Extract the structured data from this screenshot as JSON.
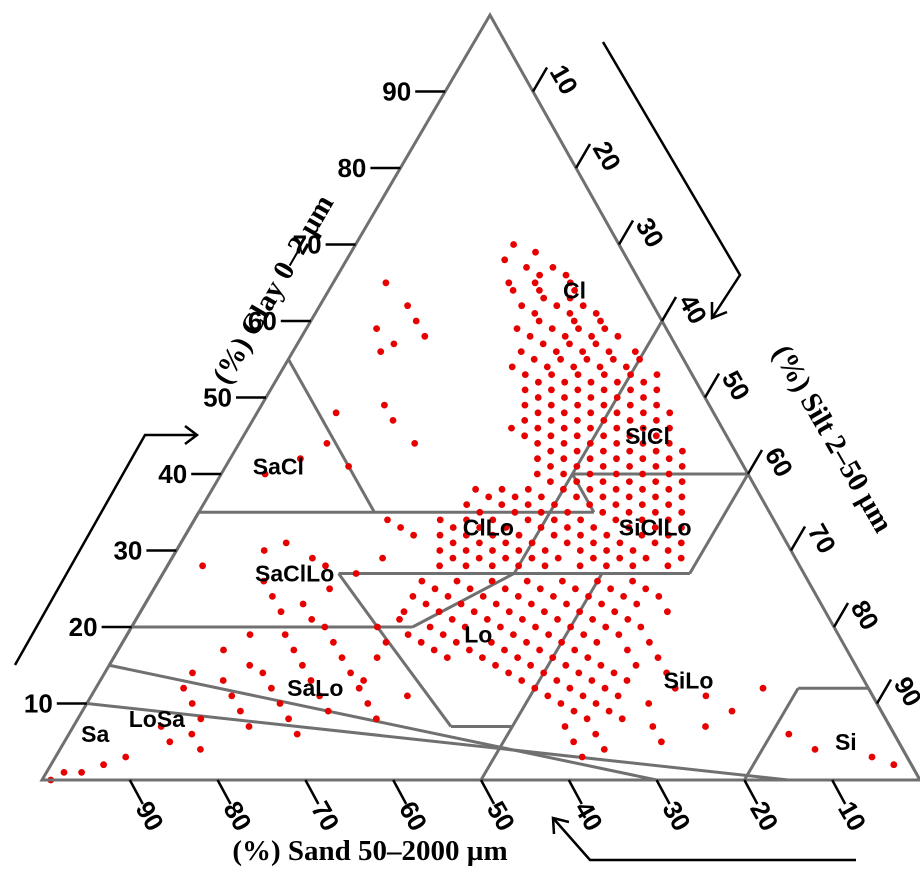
{
  "chart_data": {
    "type": "ternary-scatter",
    "axes": {
      "clay": {
        "title": "(%) Clay 0–2 µm",
        "ticks": [
          "10",
          "20",
          "30",
          "40",
          "50",
          "60",
          "70",
          "80",
          "90"
        ]
      },
      "silt": {
        "title": "(%) Silt 2–50 µm",
        "ticks": [
          "10",
          "20",
          "30",
          "40",
          "50",
          "60",
          "70",
          "80",
          "90"
        ]
      },
      "sand": {
        "title": "(%) Sand 50–2000 µm",
        "ticks": [
          "90",
          "80",
          "70",
          "60",
          "50",
          "40",
          "30",
          "20",
          "10"
        ]
      }
    },
    "regions": [
      {
        "label": "Cl",
        "clay": 64,
        "silt": 28
      },
      {
        "label": "SiCl",
        "clay": 45,
        "silt": 46
      },
      {
        "label": "SaCl",
        "clay": 41,
        "silt": 6
      },
      {
        "label": "ClLo",
        "clay": 33,
        "silt": 34
      },
      {
        "label": "SiClLo",
        "clay": 33,
        "silt": 53
      },
      {
        "label": "SaClLo",
        "clay": 27,
        "silt": 15
      },
      {
        "label": "Lo",
        "clay": 19,
        "silt": 40
      },
      {
        "label": "SiLo",
        "clay": 13,
        "silt": 67
      },
      {
        "label": "SaLo",
        "clay": 12,
        "silt": 25
      },
      {
        "label": "LoSa",
        "clay": 8,
        "silt": 9
      },
      {
        "label": "Sa",
        "clay": 6,
        "silt": 3
      },
      {
        "label": "Si",
        "clay": 5,
        "silt": 89
      }
    ],
    "point_color": "#e60000",
    "points": [
      [
        70,
        18
      ],
      [
        69,
        21
      ],
      [
        68,
        18
      ],
      [
        67,
        21
      ],
      [
        67,
        24
      ],
      [
        66,
        23
      ],
      [
        66,
        26
      ],
      [
        65,
        20
      ],
      [
        65,
        23
      ],
      [
        65,
        27
      ],
      [
        64,
        21
      ],
      [
        64,
        24
      ],
      [
        64,
        28
      ],
      [
        63,
        25
      ],
      [
        63,
        28
      ],
      [
        62,
        23
      ],
      [
        62,
        27
      ],
      [
        62,
        30
      ],
      [
        61,
        25
      ],
      [
        61,
        29
      ],
      [
        61,
        32
      ],
      [
        60,
        26
      ],
      [
        60,
        30
      ],
      [
        60,
        33
      ],
      [
        59,
        24
      ],
      [
        59,
        28
      ],
      [
        59,
        31
      ],
      [
        59,
        34
      ],
      [
        58,
        26
      ],
      [
        58,
        30
      ],
      [
        58,
        33
      ],
      [
        58,
        36
      ],
      [
        57,
        28
      ],
      [
        57,
        31
      ],
      [
        57,
        34
      ],
      [
        56,
        26
      ],
      [
        56,
        30
      ],
      [
        56,
        33
      ],
      [
        56,
        36
      ],
      [
        56,
        39
      ],
      [
        55,
        28
      ],
      [
        55,
        31
      ],
      [
        55,
        34
      ],
      [
        55,
        37
      ],
      [
        55,
        40
      ],
      [
        54,
        26
      ],
      [
        54,
        30
      ],
      [
        54,
        33
      ],
      [
        54,
        36
      ],
      [
        54,
        39
      ],
      [
        53,
        28
      ],
      [
        53,
        31
      ],
      [
        53,
        34
      ],
      [
        53,
        37
      ],
      [
        53,
        40
      ],
      [
        53,
        43
      ],
      [
        52,
        30
      ],
      [
        52,
        33
      ],
      [
        52,
        36
      ],
      [
        52,
        39
      ],
      [
        52,
        42
      ],
      [
        51,
        29
      ],
      [
        51,
        32
      ],
      [
        51,
        35
      ],
      [
        51,
        38
      ],
      [
        51,
        41
      ],
      [
        51,
        44
      ],
      [
        50,
        31
      ],
      [
        50,
        34
      ],
      [
        50,
        37
      ],
      [
        50,
        40
      ],
      [
        50,
        43
      ],
      [
        49,
        30
      ],
      [
        49,
        33
      ],
      [
        49,
        36
      ],
      [
        49,
        39
      ],
      [
        49,
        42
      ],
      [
        49,
        45
      ],
      [
        48,
        32
      ],
      [
        48,
        35
      ],
      [
        48,
        38
      ],
      [
        48,
        41
      ],
      [
        48,
        44
      ],
      [
        48,
        47
      ],
      [
        47,
        31
      ],
      [
        47,
        34
      ],
      [
        47,
        37
      ],
      [
        47,
        40
      ],
      [
        47,
        43
      ],
      [
        47,
        46
      ],
      [
        46,
        30
      ],
      [
        46,
        33
      ],
      [
        46,
        36
      ],
      [
        46,
        39
      ],
      [
        46,
        42
      ],
      [
        46,
        45
      ],
      [
        46,
        48
      ],
      [
        45,
        32
      ],
      [
        45,
        35
      ],
      [
        45,
        38
      ],
      [
        45,
        41
      ],
      [
        45,
        44
      ],
      [
        45,
        47
      ],
      [
        44,
        34
      ],
      [
        44,
        37
      ],
      [
        44,
        40
      ],
      [
        44,
        43
      ],
      [
        44,
        46
      ],
      [
        44,
        49
      ],
      [
        43,
        36
      ],
      [
        43,
        39
      ],
      [
        43,
        42
      ],
      [
        43,
        45
      ],
      [
        43,
        48
      ],
      [
        43,
        51
      ],
      [
        42,
        35
      ],
      [
        42,
        38
      ],
      [
        42,
        41
      ],
      [
        42,
        44
      ],
      [
        42,
        47
      ],
      [
        42,
        50
      ],
      [
        41,
        37
      ],
      [
        41,
        40
      ],
      [
        41,
        43
      ],
      [
        41,
        46
      ],
      [
        41,
        49
      ],
      [
        41,
        52
      ],
      [
        40,
        36
      ],
      [
        40,
        39
      ],
      [
        40,
        42
      ],
      [
        40,
        45
      ],
      [
        40,
        48
      ],
      [
        40,
        51
      ],
      [
        39,
        38
      ],
      [
        39,
        41
      ],
      [
        39,
        44
      ],
      [
        39,
        47
      ],
      [
        39,
        50
      ],
      [
        39,
        53
      ],
      [
        38,
        30
      ],
      [
        38,
        33
      ],
      [
        38,
        36
      ],
      [
        38,
        40
      ],
      [
        38,
        43
      ],
      [
        38,
        46
      ],
      [
        38,
        49
      ],
      [
        38,
        52
      ],
      [
        37,
        32
      ],
      [
        37,
        35
      ],
      [
        37,
        38
      ],
      [
        37,
        42
      ],
      [
        37,
        45
      ],
      [
        37,
        48
      ],
      [
        37,
        51
      ],
      [
        37,
        54
      ],
      [
        36,
        30
      ],
      [
        36,
        34
      ],
      [
        36,
        37
      ],
      [
        36,
        40
      ],
      [
        36,
        44
      ],
      [
        36,
        47
      ],
      [
        36,
        50
      ],
      [
        36,
        53
      ],
      [
        35,
        32
      ],
      [
        35,
        36
      ],
      [
        35,
        39
      ],
      [
        35,
        42
      ],
      [
        35,
        46
      ],
      [
        35,
        49
      ],
      [
        35,
        52
      ],
      [
        35,
        55
      ],
      [
        34,
        28
      ],
      [
        34,
        31
      ],
      [
        34,
        34
      ],
      [
        34,
        38
      ],
      [
        34,
        41
      ],
      [
        34,
        44
      ],
      [
        34,
        48
      ],
      [
        34,
        51
      ],
      [
        34,
        54
      ],
      [
        33,
        30
      ],
      [
        33,
        33
      ],
      [
        33,
        36
      ],
      [
        33,
        40
      ],
      [
        33,
        43
      ],
      [
        33,
        46
      ],
      [
        33,
        50
      ],
      [
        33,
        53
      ],
      [
        33,
        56
      ],
      [
        32,
        29
      ],
      [
        32,
        32
      ],
      [
        32,
        35
      ],
      [
        32,
        38
      ],
      [
        32,
        42
      ],
      [
        32,
        45
      ],
      [
        32,
        48
      ],
      [
        32,
        52
      ],
      [
        32,
        55
      ],
      [
        31,
        31
      ],
      [
        31,
        34
      ],
      [
        31,
        37
      ],
      [
        31,
        40
      ],
      [
        31,
        44
      ],
      [
        31,
        47
      ],
      [
        31,
        50
      ],
      [
        31,
        54
      ],
      [
        31,
        57
      ],
      [
        30,
        30
      ],
      [
        30,
        33
      ],
      [
        30,
        36
      ],
      [
        30,
        39
      ],
      [
        30,
        42
      ],
      [
        30,
        46
      ],
      [
        30,
        49
      ],
      [
        30,
        52
      ],
      [
        30,
        56
      ],
      [
        29,
        32
      ],
      [
        29,
        35
      ],
      [
        29,
        38
      ],
      [
        29,
        41
      ],
      [
        29,
        44
      ],
      [
        29,
        48
      ],
      [
        29,
        51
      ],
      [
        29,
        54
      ],
      [
        29,
        58
      ],
      [
        28,
        31
      ],
      [
        28,
        34
      ],
      [
        28,
        37
      ],
      [
        28,
        40
      ],
      [
        28,
        43
      ],
      [
        28,
        47
      ],
      [
        28,
        50
      ],
      [
        28,
        53
      ],
      [
        28,
        57
      ],
      [
        26,
        30
      ],
      [
        26,
        34
      ],
      [
        26,
        38
      ],
      [
        26,
        42
      ],
      [
        26,
        46
      ],
      [
        26,
        50
      ],
      [
        26,
        54
      ],
      [
        25,
        32
      ],
      [
        25,
        36
      ],
      [
        25,
        40
      ],
      [
        25,
        44
      ],
      [
        25,
        48
      ],
      [
        25,
        52
      ],
      [
        25,
        56
      ],
      [
        24,
        30
      ],
      [
        24,
        34
      ],
      [
        24,
        38
      ],
      [
        24,
        42
      ],
      [
        24,
        46
      ],
      [
        24,
        50
      ],
      [
        24,
        54
      ],
      [
        24,
        58
      ],
      [
        23,
        32
      ],
      [
        23,
        36
      ],
      [
        23,
        40
      ],
      [
        23,
        44
      ],
      [
        23,
        48
      ],
      [
        23,
        52
      ],
      [
        23,
        56
      ],
      [
        22,
        34
      ],
      [
        22,
        38
      ],
      [
        22,
        42
      ],
      [
        22,
        46
      ],
      [
        22,
        50
      ],
      [
        22,
        54
      ],
      [
        22,
        60
      ],
      [
        21,
        30
      ],
      [
        21,
        36
      ],
      [
        21,
        40
      ],
      [
        21,
        44
      ],
      [
        21,
        48
      ],
      [
        21,
        52
      ],
      [
        21,
        56
      ],
      [
        20,
        34
      ],
      [
        20,
        38
      ],
      [
        20,
        42
      ],
      [
        20,
        46
      ],
      [
        20,
        50
      ],
      [
        20,
        54
      ],
      [
        20,
        58
      ],
      [
        19,
        32
      ],
      [
        19,
        36
      ],
      [
        19,
        44
      ],
      [
        19,
        48
      ],
      [
        19,
        52
      ],
      [
        19,
        56
      ],
      [
        18,
        34
      ],
      [
        18,
        38
      ],
      [
        18,
        42
      ],
      [
        18,
        46
      ],
      [
        18,
        50
      ],
      [
        18,
        54
      ],
      [
        18,
        60
      ],
      [
        17,
        36
      ],
      [
        17,
        40
      ],
      [
        17,
        44
      ],
      [
        17,
        48
      ],
      [
        17,
        52
      ],
      [
        17,
        58
      ],
      [
        16,
        38
      ],
      [
        16,
        42
      ],
      [
        16,
        46
      ],
      [
        16,
        50
      ],
      [
        16,
        54
      ],
      [
        16,
        62
      ],
      [
        15,
        44
      ],
      [
        15,
        48
      ],
      [
        15,
        52
      ],
      [
        15,
        56
      ],
      [
        15,
        60
      ],
      [
        14,
        46
      ],
      [
        14,
        50
      ],
      [
        14,
        54
      ],
      [
        14,
        58
      ],
      [
        14,
        64
      ],
      [
        13,
        48
      ],
      [
        13,
        52
      ],
      [
        13,
        56
      ],
      [
        13,
        60
      ],
      [
        12,
        50
      ],
      [
        12,
        54
      ],
      [
        12,
        58
      ],
      [
        12,
        66
      ],
      [
        11,
        52
      ],
      [
        11,
        56
      ],
      [
        11,
        60
      ],
      [
        10,
        54
      ],
      [
        10,
        58
      ],
      [
        10,
        64
      ],
      [
        9,
        56
      ],
      [
        9,
        60
      ],
      [
        8,
        58
      ],
      [
        8,
        62
      ],
      [
        7,
        56
      ],
      [
        7,
        66
      ],
      [
        6,
        60
      ],
      [
        5,
        58
      ],
      [
        4,
        62
      ],
      [
        3,
        60
      ],
      [
        11,
        70
      ],
      [
        9,
        74
      ],
      [
        7,
        72
      ],
      [
        12,
        76
      ],
      [
        5,
        68
      ],
      [
        6,
        82
      ],
      [
        4,
        86
      ],
      [
        2,
        96
      ],
      [
        3,
        93
      ],
      [
        26,
        12
      ],
      [
        24,
        14
      ],
      [
        23,
        18
      ],
      [
        22,
        16
      ],
      [
        21,
        20
      ],
      [
        20,
        22
      ],
      [
        19,
        18
      ],
      [
        18,
        24
      ],
      [
        17,
        20
      ],
      [
        16,
        26
      ],
      [
        15,
        22
      ],
      [
        14,
        28
      ],
      [
        13,
        24
      ],
      [
        12,
        30
      ],
      [
        11,
        26
      ],
      [
        10,
        32
      ],
      [
        9,
        28
      ],
      [
        8,
        34
      ],
      [
        15,
        16
      ],
      [
        14,
        18
      ],
      [
        13,
        14
      ],
      [
        12,
        20
      ],
      [
        11,
        16
      ],
      [
        10,
        22
      ],
      [
        9,
        18
      ],
      [
        8,
        24
      ],
      [
        7,
        20
      ],
      [
        6,
        26
      ],
      [
        16,
        30
      ],
      [
        18,
        30
      ],
      [
        20,
        28
      ],
      [
        22,
        30
      ],
      [
        13,
        30
      ],
      [
        11,
        36
      ],
      [
        10,
        12
      ],
      [
        8,
        14
      ],
      [
        7,
        10
      ],
      [
        6,
        14
      ],
      [
        5,
        12
      ],
      [
        4,
        16
      ],
      [
        3,
        8
      ],
      [
        2,
        6
      ],
      [
        1,
        4
      ],
      [
        1,
        2
      ],
      [
        0,
        1
      ],
      [
        12,
        10
      ],
      [
        14,
        10
      ],
      [
        17,
        12
      ],
      [
        19,
        14
      ],
      [
        25,
        20
      ],
      [
        28,
        18
      ],
      [
        27,
        22
      ],
      [
        29,
        24
      ],
      [
        28,
        4
      ],
      [
        30,
        10
      ],
      [
        31,
        12
      ],
      [
        29,
        16
      ],
      [
        40,
        5
      ],
      [
        48,
        9
      ],
      [
        62,
        10
      ],
      [
        56,
        10
      ],
      [
        60,
        12
      ],
      [
        58,
        14
      ],
      [
        57,
        11
      ],
      [
        65,
        6
      ],
      [
        59,
        8
      ],
      [
        49,
        14
      ],
      [
        47,
        16
      ],
      [
        44,
        10
      ],
      [
        44,
        20
      ],
      [
        42,
        8
      ],
      [
        41,
        14
      ],
      [
        34,
        22
      ],
      [
        33,
        24
      ],
      [
        32,
        26
      ]
    ]
  }
}
